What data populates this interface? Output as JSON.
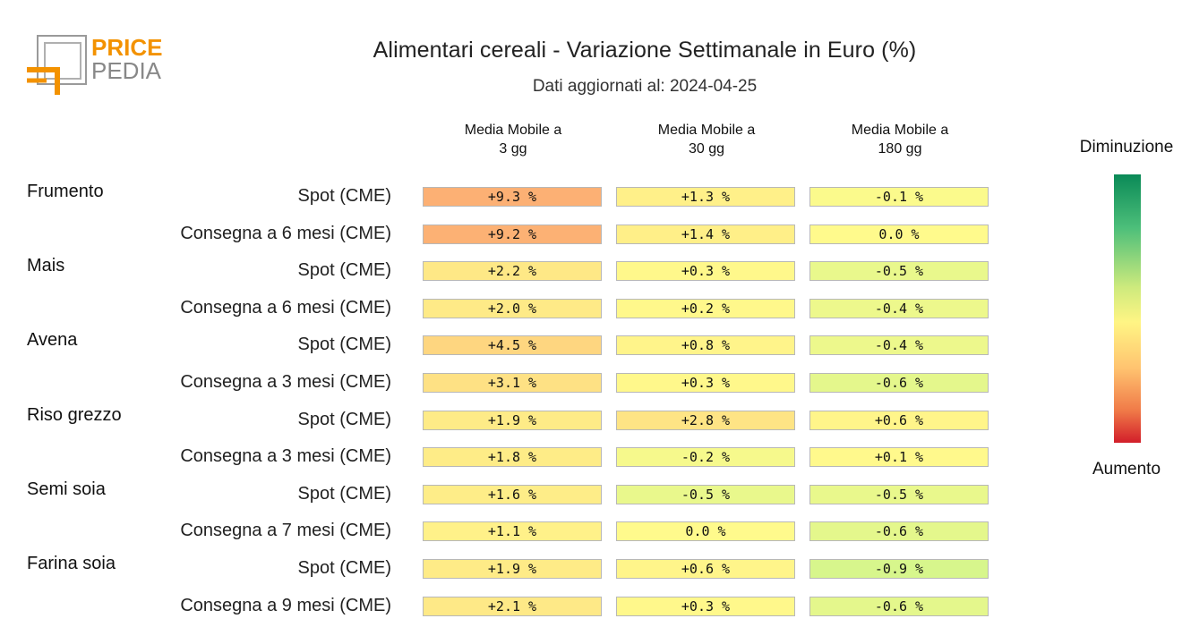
{
  "logo": {
    "line1": "PRICE",
    "line2": "PEDIA"
  },
  "chart_data": {
    "type": "table",
    "title": "Alimentari cereali - Variazione Settimanale in Euro (%)",
    "subtitle": "Dati aggiornati al: 2024-04-25",
    "columns": [
      "Media Mobile a\n3 gg",
      "Media Mobile a\n30 gg",
      "Media Mobile a\n180 gg"
    ],
    "legend": {
      "top": "Diminuzione",
      "bottom": "Aumento",
      "colors": [
        "#0a8a57",
        "#fff584",
        "#d21e2a"
      ]
    },
    "groups": [
      {
        "name": "Frumento",
        "rows": [
          {
            "label": "Spot (CME)",
            "values": [
              9.3,
              1.3,
              -0.1
            ],
            "text": [
              "+9.3 %",
              "+1.3 %",
              "-0.1 %"
            ]
          },
          {
            "label": "Consegna a 6 mesi (CME)",
            "values": [
              9.2,
              1.4,
              0.0
            ],
            "text": [
              "+9.2 %",
              "+1.4 %",
              "0.0 %"
            ]
          }
        ]
      },
      {
        "name": "Mais",
        "rows": [
          {
            "label": "Spot (CME)",
            "values": [
              2.2,
              0.3,
              -0.5
            ],
            "text": [
              "+2.2 %",
              "+0.3 %",
              "-0.5 %"
            ]
          },
          {
            "label": "Consegna a 6 mesi (CME)",
            "values": [
              2.0,
              0.2,
              -0.4
            ],
            "text": [
              "+2.0 %",
              "+0.2 %",
              "-0.4 %"
            ]
          }
        ]
      },
      {
        "name": "Avena",
        "rows": [
          {
            "label": "Spot (CME)",
            "values": [
              4.5,
              0.8,
              -0.4
            ],
            "text": [
              "+4.5 %",
              "+0.8 %",
              "-0.4 %"
            ]
          },
          {
            "label": "Consegna a 3 mesi (CME)",
            "values": [
              3.1,
              0.3,
              -0.6
            ],
            "text": [
              "+3.1 %",
              "+0.3 %",
              "-0.6 %"
            ]
          }
        ]
      },
      {
        "name": "Riso grezzo",
        "rows": [
          {
            "label": "Spot (CME)",
            "values": [
              1.9,
              2.8,
              0.6
            ],
            "text": [
              "+1.9 %",
              "+2.8 %",
              "+0.6 %"
            ]
          },
          {
            "label": "Consegna a 3 mesi (CME)",
            "values": [
              1.8,
              -0.2,
              0.1
            ],
            "text": [
              "+1.8 %",
              "-0.2 %",
              "+0.1 %"
            ]
          }
        ]
      },
      {
        "name": "Semi soia",
        "rows": [
          {
            "label": "Spot (CME)",
            "values": [
              1.6,
              -0.5,
              -0.5
            ],
            "text": [
              "+1.6 %",
              "-0.5 %",
              "-0.5 %"
            ]
          },
          {
            "label": "Consegna a 7 mesi (CME)",
            "values": [
              1.1,
              0.0,
              -0.6
            ],
            "text": [
              "+1.1 %",
              "0.0 %",
              "-0.6 %"
            ]
          }
        ]
      },
      {
        "name": "Farina soia",
        "rows": [
          {
            "label": "Spot (CME)",
            "values": [
              1.9,
              0.6,
              -0.9
            ],
            "text": [
              "+1.9 %",
              "+0.6 %",
              "-0.9 %"
            ]
          },
          {
            "label": "Consegna a 9 mesi (CME)",
            "values": [
              2.1,
              0.3,
              -0.6
            ],
            "text": [
              "+2.1 %",
              "+0.3 %",
              "-0.6 %"
            ]
          }
        ]
      }
    ]
  }
}
